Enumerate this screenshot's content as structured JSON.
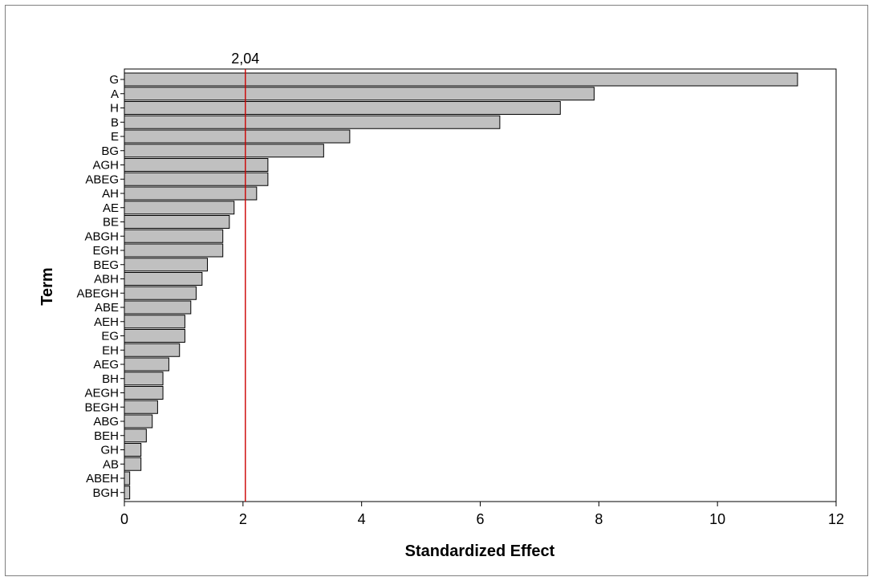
{
  "chart_data": {
    "type": "bar",
    "orientation": "horizontal",
    "ylabel": "Term",
    "xlabel": "Standardized Effect",
    "reference_line": {
      "value": 2.04,
      "label": "2,04",
      "color": "#cc0000"
    },
    "xlim": [
      0,
      12
    ],
    "xticks": [
      "0",
      "2",
      "4",
      "6",
      "8",
      "10",
      "12"
    ],
    "bar_color": "#c0c0c0",
    "grid": false,
    "categories": [
      "G",
      "A",
      "H",
      "B",
      "E",
      "BG",
      "AGH",
      "ABEG",
      "AH",
      "AE",
      "BE",
      "ABGH",
      "EGH",
      "BEG",
      "ABH",
      "ABEGH",
      "ABE",
      "AEH",
      "EG",
      "EH",
      "AEG",
      "BH",
      "AEGH",
      "BEGH",
      "ABG",
      "BEH",
      "GH",
      "AB",
      "ABEH",
      "BGH"
    ],
    "values": [
      11.35,
      7.92,
      7.35,
      6.33,
      3.8,
      3.36,
      2.42,
      2.42,
      2.23,
      1.85,
      1.77,
      1.66,
      1.66,
      1.4,
      1.31,
      1.21,
      1.12,
      1.02,
      1.02,
      0.93,
      0.75,
      0.65,
      0.65,
      0.56,
      0.47,
      0.37,
      0.28,
      0.28,
      0.09,
      0.09
    ]
  }
}
